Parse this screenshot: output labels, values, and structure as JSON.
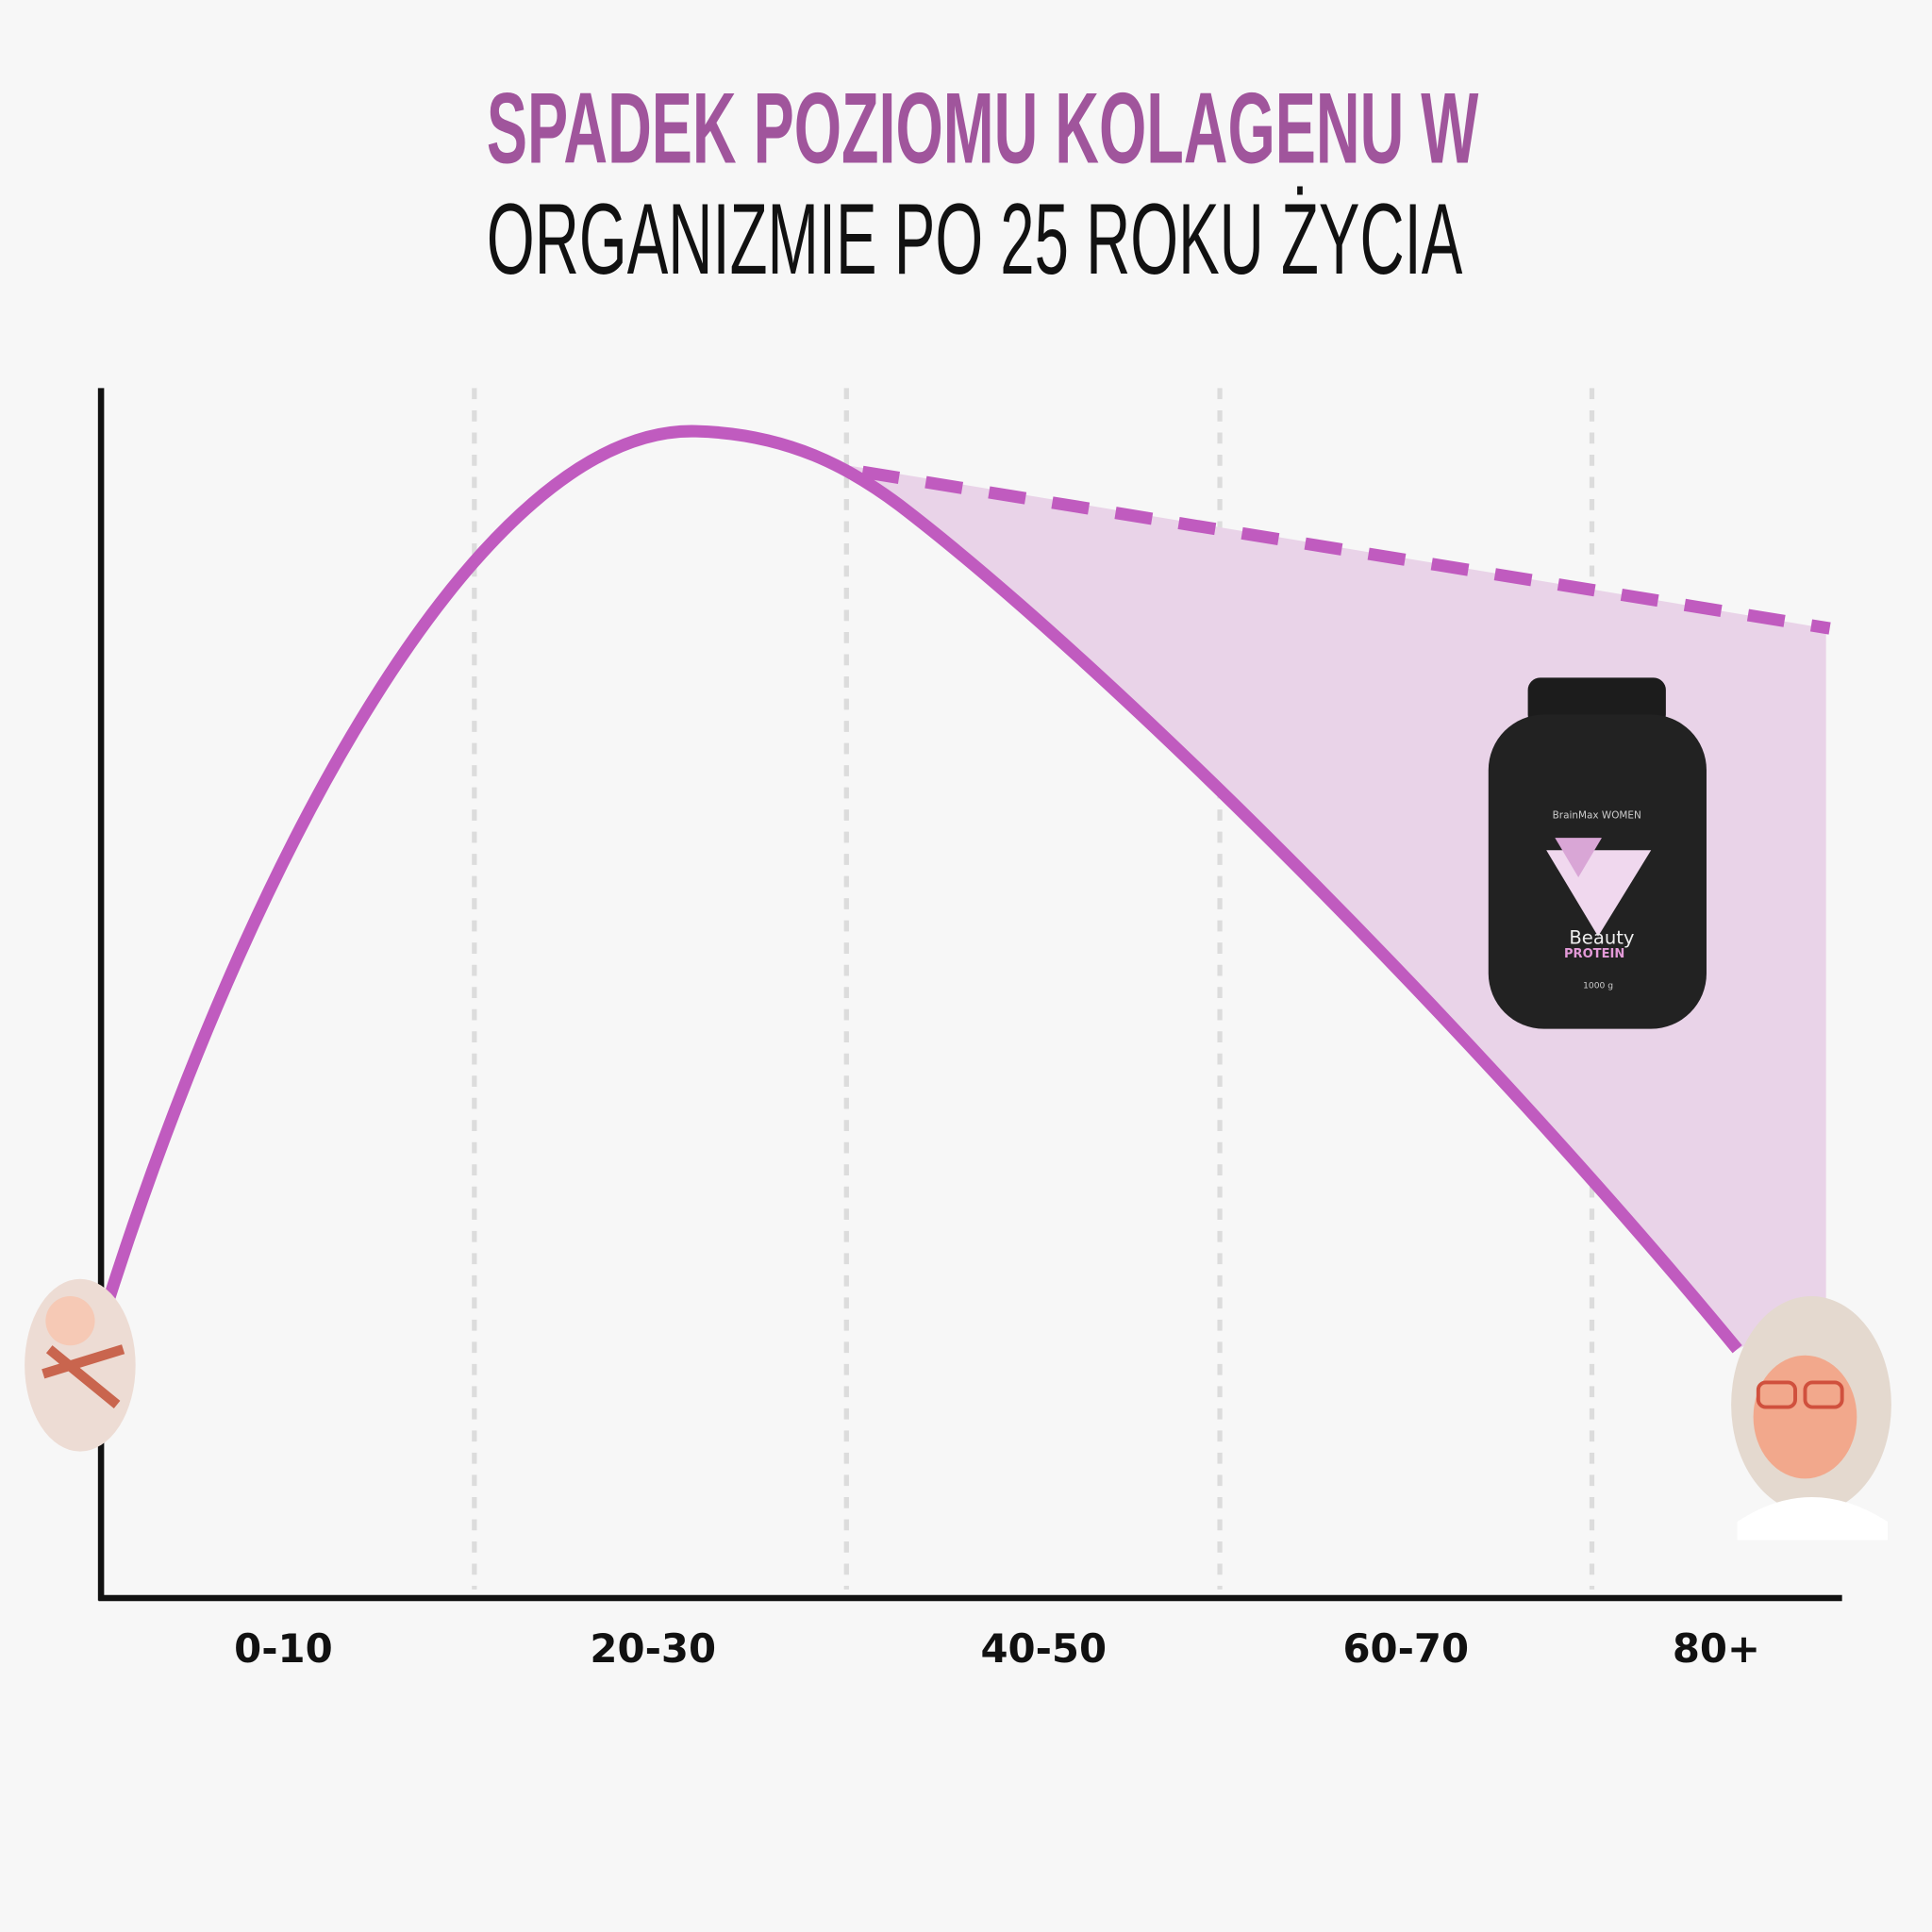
{
  "title": {
    "line1": "SPADEK POZIOMU KOLAGENU W",
    "line2": "ORGANIZMIE PO 25 ROKU ŻYCIA"
  },
  "axis": {
    "categories": [
      "0-10",
      "20-30",
      "40-50",
      "60-70",
      "80+"
    ]
  },
  "product": {
    "brand": "BrainMax WOMEN",
    "name": "Beauty",
    "subname": "PROTEIN",
    "weight": "1000 g"
  }
}
